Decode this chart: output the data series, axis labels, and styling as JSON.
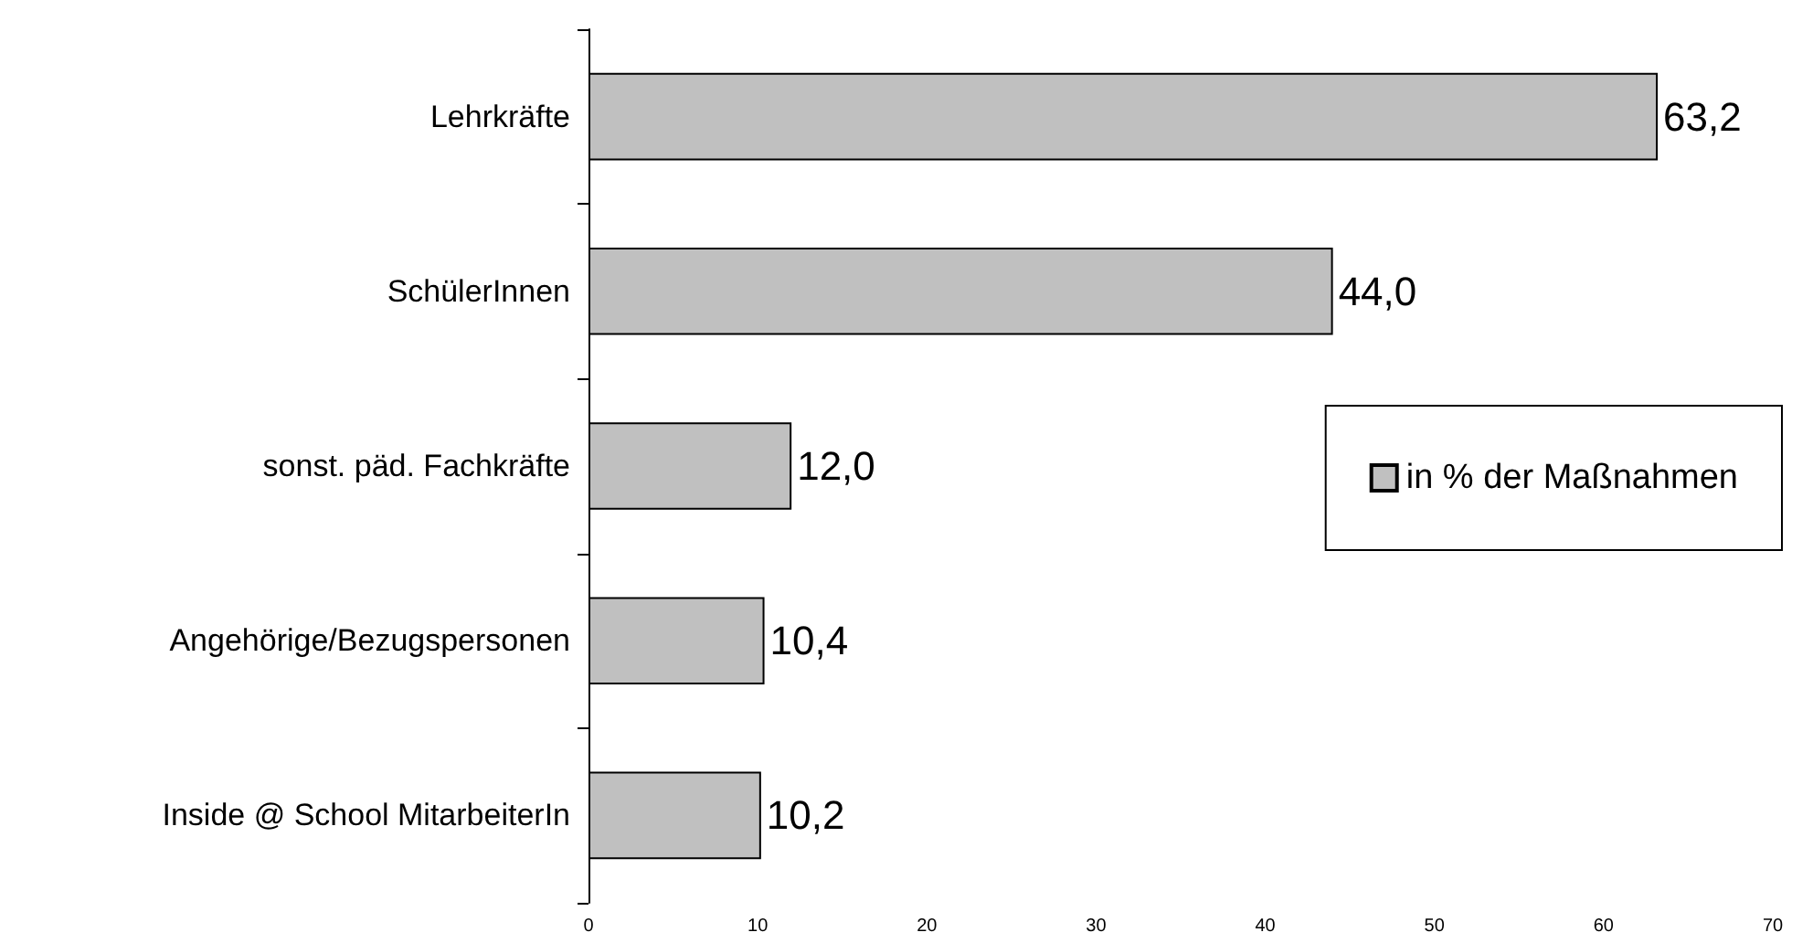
{
  "chart_data": {
    "type": "bar",
    "orientation": "horizontal",
    "categories": [
      "Lehrkräfte",
      "SchülerInnen",
      "sonst. päd. Fachkräfte",
      "Angehörige/Bezugspersonen",
      "Inside @ School MitarbeiterIn"
    ],
    "series": [
      {
        "name": "in % der Maßnahmen",
        "color": "#c0c0c0",
        "values": [
          63.2,
          44.0,
          12.0,
          10.4,
          10.2
        ],
        "value_labels": [
          "63,2",
          "44,0",
          "12,0",
          "10,4",
          "10,2"
        ]
      }
    ],
    "xlim": [
      0,
      70
    ],
    "xticks": [
      0,
      10,
      20,
      30,
      40,
      50,
      60,
      70
    ],
    "grid": false,
    "legend": "right"
  }
}
